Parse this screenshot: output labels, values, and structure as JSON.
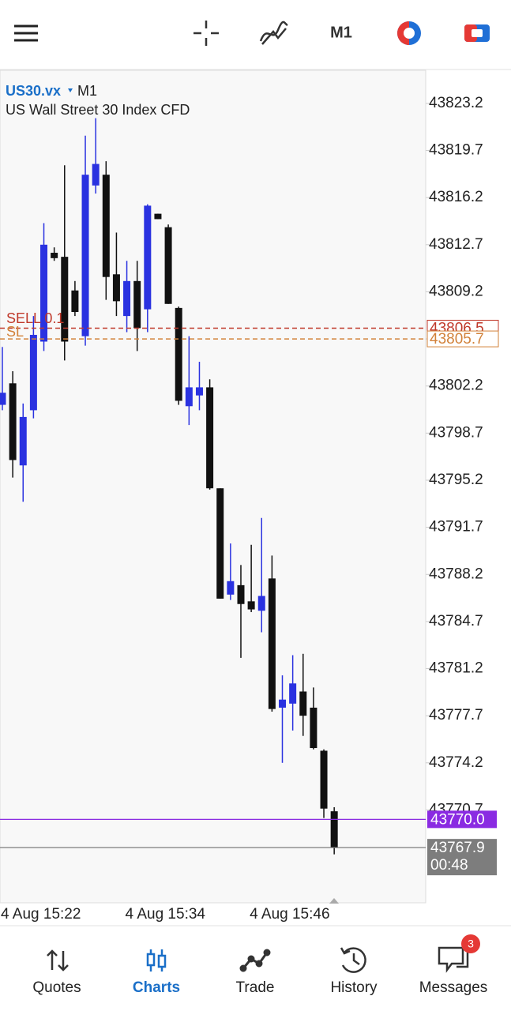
{
  "toolbar": {
    "timeframe": "M1"
  },
  "chart_data": {
    "type": "candlestick",
    "symbol": "US30.vx",
    "timeframe": "M1",
    "description": "US Wall Street 30 Index CFD",
    "ylim": [
      43763.8,
      43825.6
    ],
    "yticks": [
      43823.2,
      43819.7,
      43816.2,
      43812.7,
      43809.2,
      43805.7,
      43802.2,
      43798.7,
      43795.2,
      43791.7,
      43788.2,
      43784.7,
      43781.2,
      43777.7,
      43774.2,
      43770.7
    ],
    "x_labels": [
      "4 Aug 15:22",
      "4 Aug 15:34",
      "4 Aug 15:46"
    ],
    "up_color": "#2a32e0",
    "down_color": "#111111",
    "open": [
      43800.8,
      43802.4,
      43796.3,
      43800.4,
      43805.5,
      43812.1,
      43811.8,
      43809.3,
      43805.9,
      43817.1,
      43817.9,
      43810.5,
      43807.4,
      43810.0,
      43807.9,
      43815.0,
      43814.0,
      43808.0,
      43800.7,
      43801.5,
      43802.1,
      43794.6,
      43786.7,
      43787.4,
      43786.2,
      43785.5,
      43787.9,
      43778.3,
      43778.6,
      43779.5,
      43778.3,
      43775.1,
      43770.6
    ],
    "high": [
      43805.1,
      43803.3,
      43800.9,
      43807.4,
      43814.3,
      43812.5,
      43818.6,
      43810.0,
      43820.8,
      43822.1,
      43818.9,
      43813.6,
      43811.5,
      43811.5,
      43815.7,
      43815.0,
      43814.2,
      43808.1,
      43805.9,
      43804.0,
      43802.7,
      43794.6,
      43790.5,
      43788.9,
      43790.4,
      43792.4,
      43789.6,
      43780.7,
      43782.2,
      43782.3,
      43779.8,
      43775.2,
      43770.9
    ],
    "low": [
      43800.4,
      43795.4,
      43793.6,
      43799.8,
      43804.8,
      43811.5,
      43804.1,
      43807.4,
      43805.2,
      43816.5,
      43808.6,
      43807.4,
      43806.2,
      43804.8,
      43806.2,
      43814.6,
      43808.3,
      43800.8,
      43799.3,
      43800.4,
      43794.5,
      43786.4,
      43786.3,
      43782.0,
      43785.4,
      43783.9,
      43778.0,
      43774.2,
      43776.6,
      43776.2,
      43775.2,
      43770.1,
      43767.4
    ],
    "close": [
      43801.7,
      43796.7,
      43799.9,
      43806.0,
      43812.7,
      43811.7,
      43805.5,
      43807.7,
      43817.9,
      43818.7,
      43810.3,
      43808.5,
      43810.0,
      43806.5,
      43815.6,
      43814.6,
      43808.3,
      43801.1,
      43802.1,
      43802.1,
      43794.6,
      43786.4,
      43787.7,
      43786.0,
      43785.6,
      43786.6,
      43778.2,
      43778.9,
      43780.1,
      43777.7,
      43775.3,
      43770.8,
      43767.9
    ],
    "levels": [
      {
        "label": "SELL 0.1",
        "price": 43806.5,
        "color": "#c0392b"
      },
      {
        "label": "SL",
        "price": 43805.7,
        "color": "#d2823a"
      }
    ],
    "bid": {
      "value": 43770,
      "label": "43770.0",
      "color": "#8a2be2"
    },
    "last": {
      "value": 43767.9,
      "timer": "00:48",
      "color": "#7d7d7d"
    }
  },
  "nav": {
    "items": [
      "Quotes",
      "Charts",
      "Trade",
      "History",
      "Messages"
    ],
    "active": 1,
    "badge": 3
  }
}
